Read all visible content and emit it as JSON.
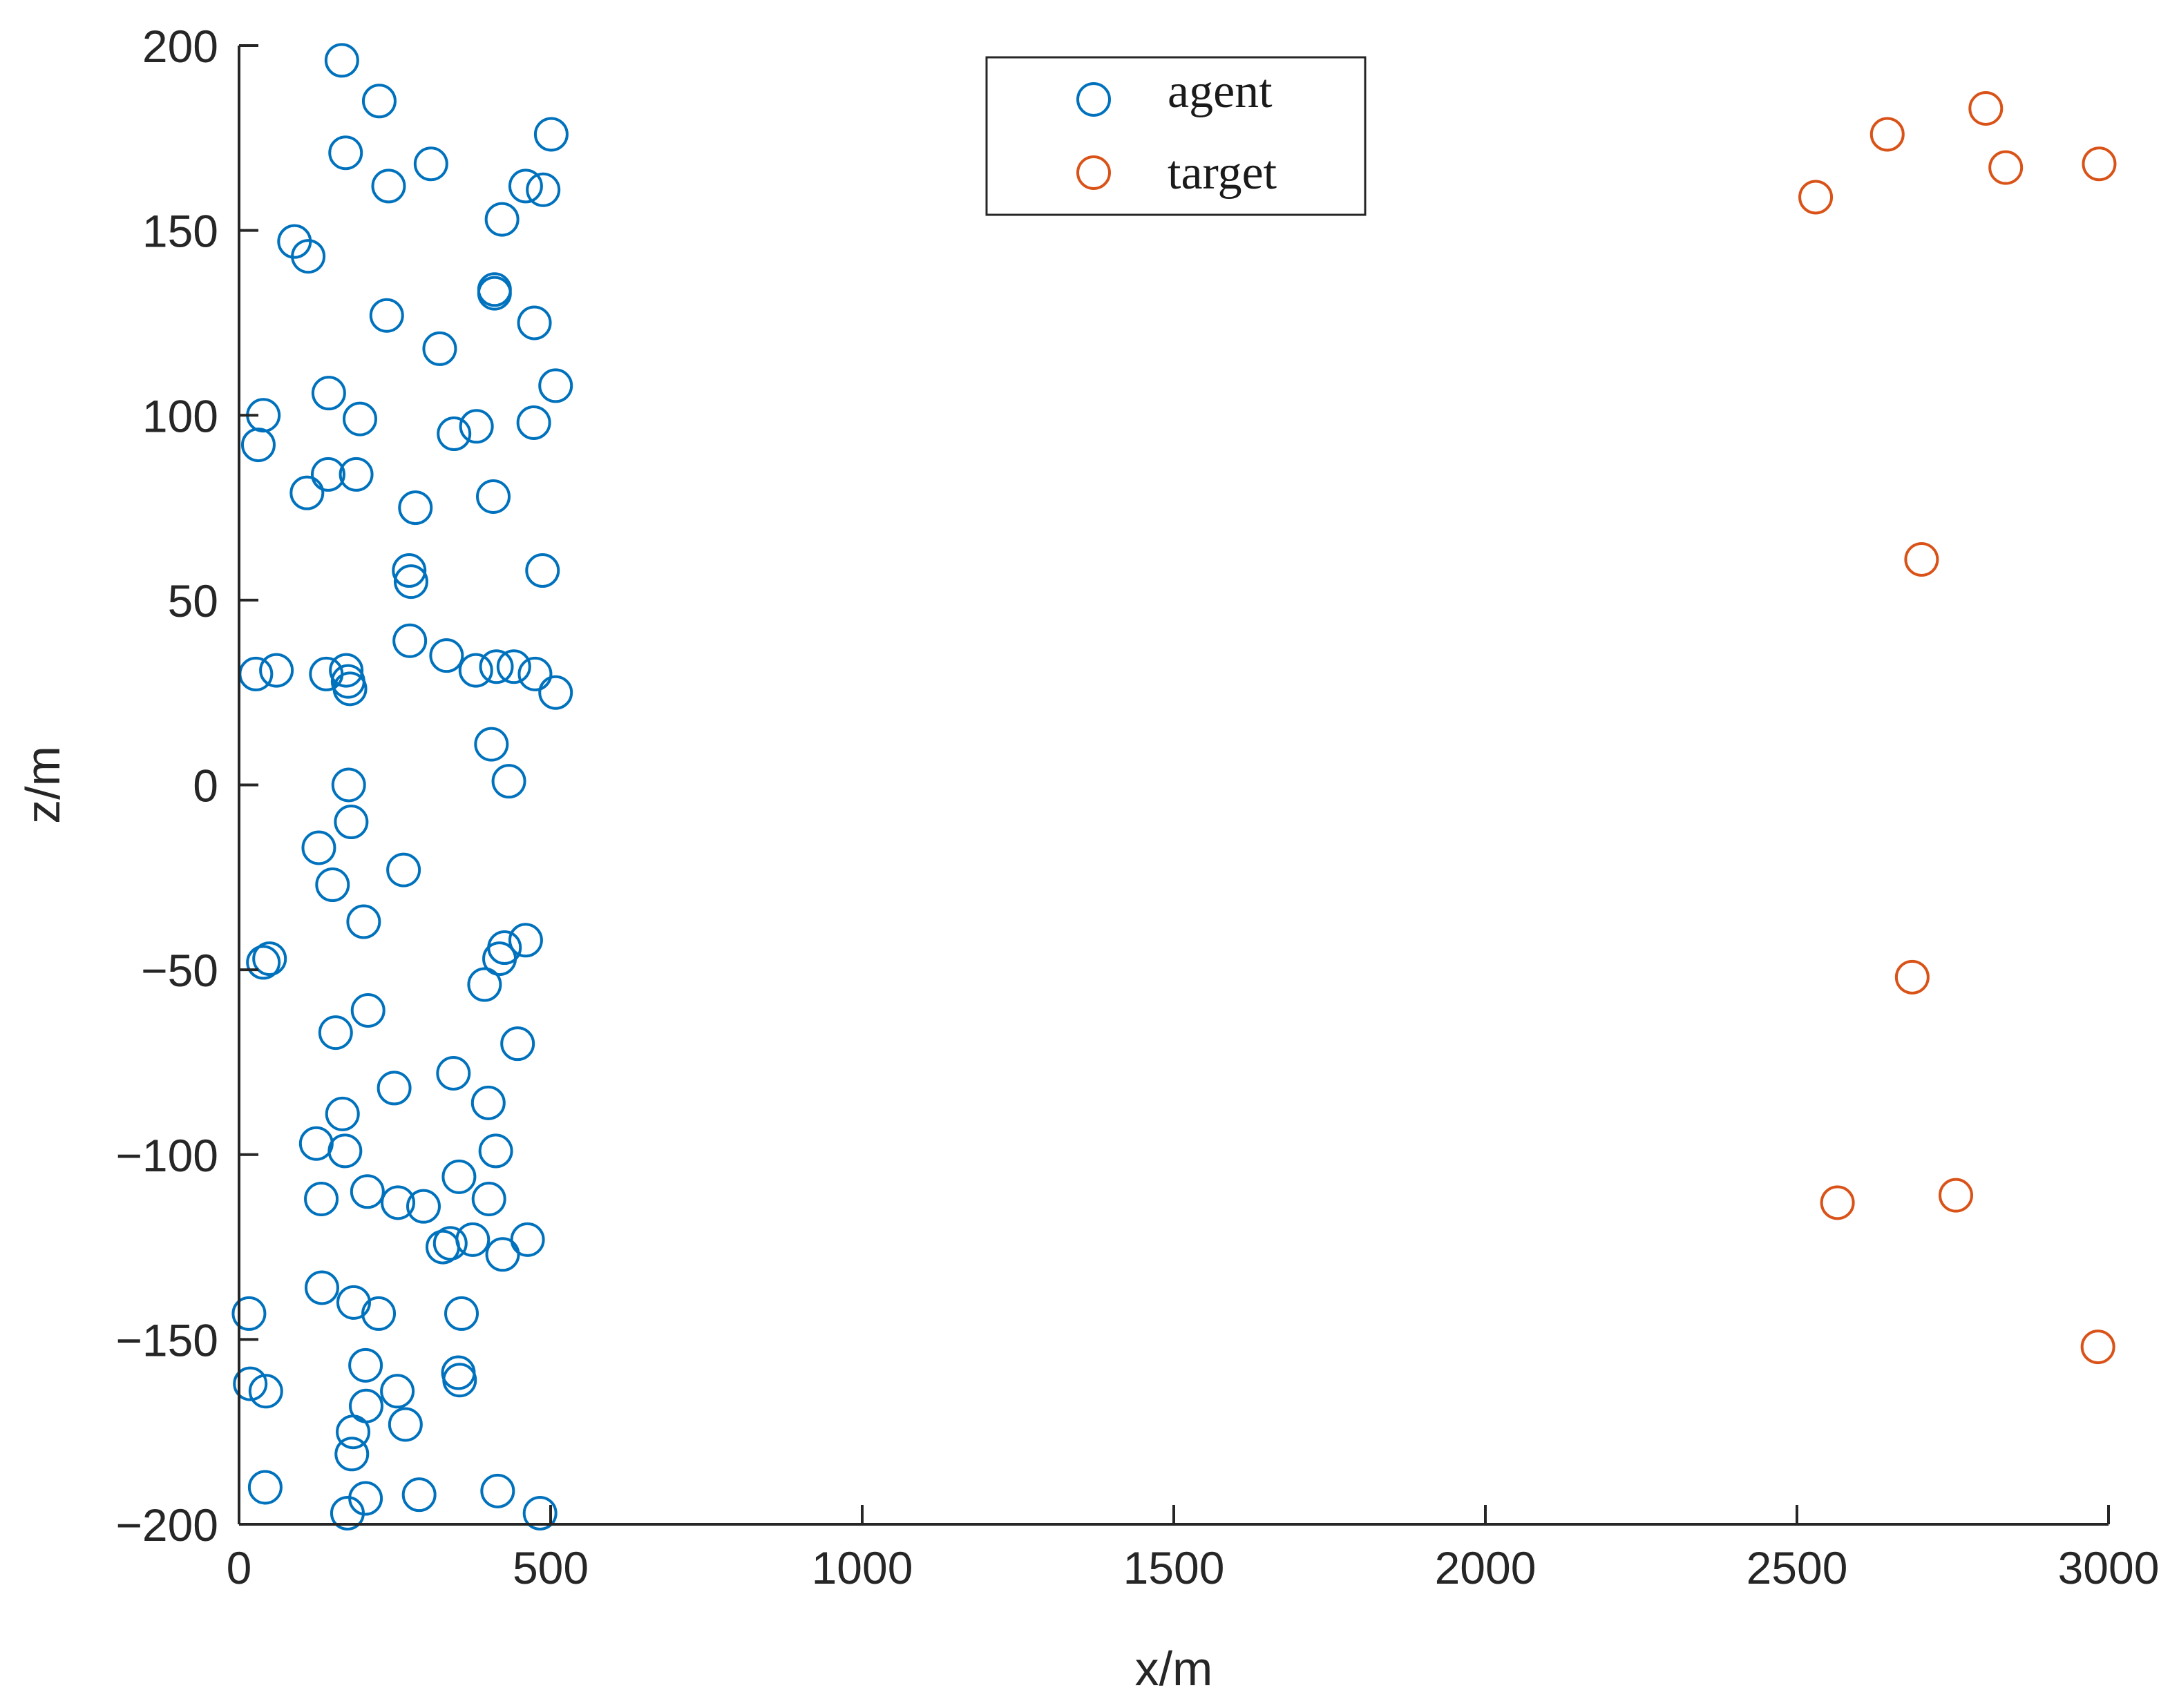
{
  "chart_data": {
    "type": "scatter",
    "xlabel": "x/m",
    "ylabel": "z/m",
    "xlim": [
      0,
      3000
    ],
    "ylim": [
      -200,
      200
    ],
    "xticks": [
      0,
      500,
      1000,
      1500,
      2000,
      2500,
      3000
    ],
    "yticks": [
      -200,
      -150,
      -100,
      -50,
      0,
      50,
      100,
      150,
      200
    ],
    "xtick_labels": [
      "0",
      "500",
      "1000",
      "1500",
      "2000",
      "2500",
      "3000"
    ],
    "ytick_labels": [
      "−200",
      "−150",
      "−100",
      "−50",
      "0",
      "50",
      "100",
      "150",
      "200"
    ],
    "grid": false,
    "legend_position": "top-center",
    "marker": "open-circle",
    "series": [
      {
        "name": "agent",
        "color": "#0072BD",
        "points": [
          [
            165,
            196
          ],
          [
            225,
            185
          ],
          [
            171,
            171
          ],
          [
            240,
            162
          ],
          [
            308,
            168
          ],
          [
            89,
            147
          ],
          [
            111,
            143
          ],
          [
            422,
            153
          ],
          [
            460,
            162
          ],
          [
            488,
            161
          ],
          [
            501,
            176
          ],
          [
            410,
            134
          ],
          [
            410,
            133
          ],
          [
            237,
            127
          ],
          [
            474,
            125
          ],
          [
            322,
            118
          ],
          [
            508,
            108
          ],
          [
            144,
            106
          ],
          [
            39,
            100
          ],
          [
            194,
            99
          ],
          [
            381,
            97
          ],
          [
            473,
            98
          ],
          [
            345,
            95
          ],
          [
            31,
            92
          ],
          [
            143,
            84
          ],
          [
            188,
            84
          ],
          [
            109,
            79
          ],
          [
            283,
            75
          ],
          [
            408,
            78
          ],
          [
            273,
            58
          ],
          [
            276,
            55
          ],
          [
            487,
            58
          ],
          [
            274,
            39
          ],
          [
            333,
            35
          ],
          [
            27,
            30
          ],
          [
            60,
            31
          ],
          [
            140,
            30
          ],
          [
            172,
            31
          ],
          [
            380,
            31
          ],
          [
            413,
            32
          ],
          [
            441,
            32
          ],
          [
            475,
            30
          ],
          [
            175,
            28
          ],
          [
            178,
            26
          ],
          [
            508,
            25
          ],
          [
            405,
            11
          ],
          [
            176,
            0
          ],
          [
            433,
            1
          ],
          [
            180,
            -10
          ],
          [
            128,
            -17
          ],
          [
            150,
            -27
          ],
          [
            264,
            -23
          ],
          [
            200,
            -37
          ],
          [
            49,
            -47
          ],
          [
            39,
            -48
          ],
          [
            426,
            -44
          ],
          [
            460,
            -42
          ],
          [
            418,
            -47
          ],
          [
            394,
            -54
          ],
          [
            207,
            -61
          ],
          [
            155,
            -67
          ],
          [
            447,
            -70
          ],
          [
            249,
            -82
          ],
          [
            344,
            -78
          ],
          [
            400,
            -86
          ],
          [
            166,
            -89
          ],
          [
            124,
            -97
          ],
          [
            170,
            -99
          ],
          [
            412,
            -99
          ],
          [
            353,
            -106
          ],
          [
            132,
            -112
          ],
          [
            206,
            -110
          ],
          [
            255,
            -113
          ],
          [
            296,
            -114
          ],
          [
            401,
            -112
          ],
          [
            339,
            -124
          ],
          [
            375,
            -123
          ],
          [
            463,
            -123
          ],
          [
            327,
            -125
          ],
          [
            423,
            -127
          ],
          [
            133,
            -136
          ],
          [
            184,
            -140
          ],
          [
            224,
            -143
          ],
          [
            16,
            -143
          ],
          [
            357,
            -143
          ],
          [
            203,
            -157
          ],
          [
            352,
            -159
          ],
          [
            354,
            -161
          ],
          [
            18,
            -162
          ],
          [
            43,
            -164
          ],
          [
            254,
            -164
          ],
          [
            204,
            -168
          ],
          [
            267,
            -173
          ],
          [
            183,
            -175
          ],
          [
            181,
            -181
          ],
          [
            42,
            -190
          ],
          [
            203,
            -193
          ],
          [
            289,
            -192
          ],
          [
            415,
            -191
          ],
          [
            174,
            -197
          ],
          [
            483,
            -197
          ]
        ]
      },
      {
        "name": "target",
        "color": "#D95319",
        "points": [
          [
            2530,
            159
          ],
          [
            2645,
            176
          ],
          [
            2803,
            183
          ],
          [
            2835,
            167
          ],
          [
            2985,
            168
          ],
          [
            2700,
            61
          ],
          [
            2685,
            -52
          ],
          [
            2565,
            -113
          ],
          [
            2755,
            -111
          ],
          [
            2983,
            -152
          ]
        ]
      }
    ]
  }
}
